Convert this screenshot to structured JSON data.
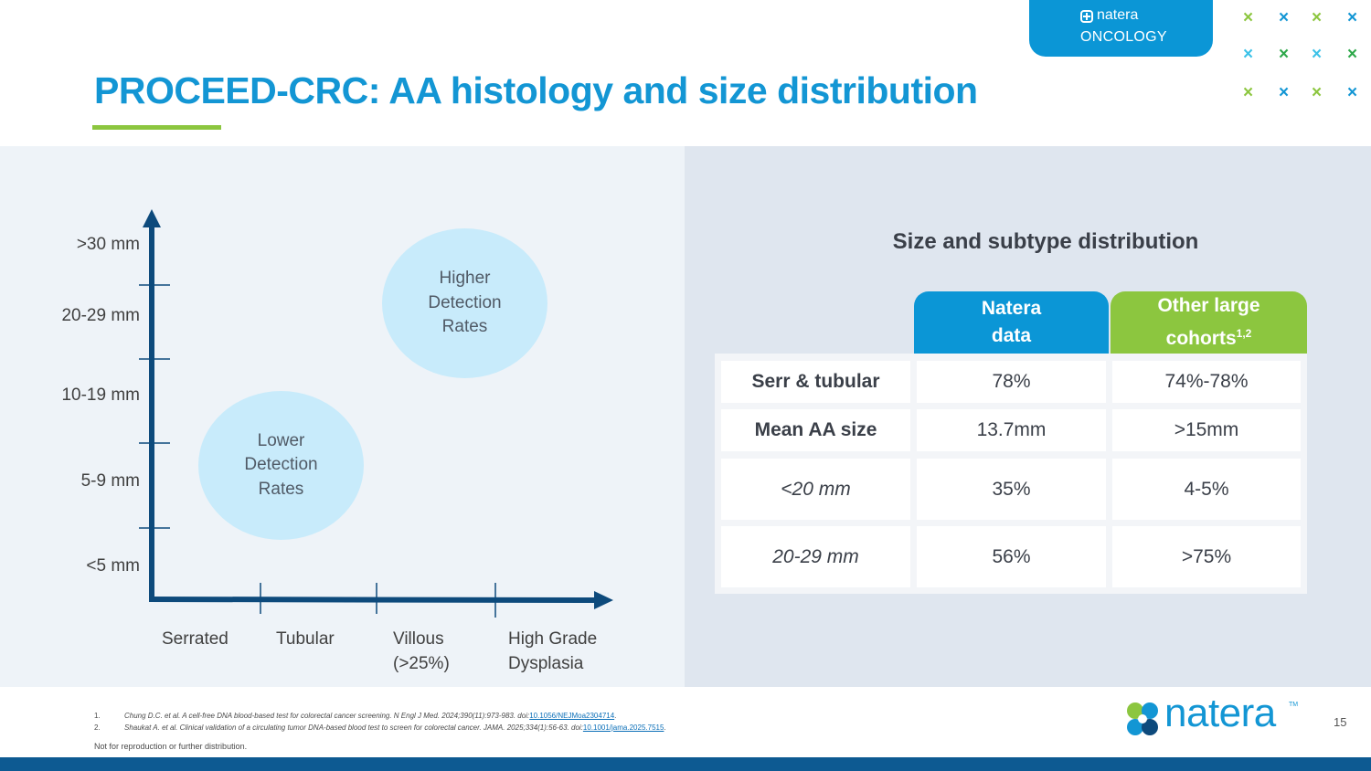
{
  "header": {
    "title": "PROCEED-CRC: AA histology and size distribution",
    "brand_tab": {
      "name": "natera",
      "sub": "ONCOLOGY"
    },
    "accent_colors": {
      "title": "#1396d4",
      "rule": "#8cc63f",
      "x_green": "#8cc63f",
      "x_blue": "#1396d4",
      "x_dark_green": "#2ea84a",
      "x_light_blue": "#3cc2e8"
    }
  },
  "x_marks": [
    {
      "glyph": "×",
      "color": "#8cc63f"
    },
    {
      "glyph": "×",
      "color": "#1396d4"
    },
    {
      "glyph": "×",
      "color": "#8cc63f"
    },
    {
      "glyph": "×",
      "color": "#1396d4"
    },
    {
      "glyph": "×",
      "color": "#3cc2e8"
    },
    {
      "glyph": "×",
      "color": "#2ea84a"
    },
    {
      "glyph": "×",
      "color": "#3cc2e8"
    },
    {
      "glyph": "×",
      "color": "#2ea84a"
    },
    {
      "glyph": "×",
      "color": "#8cc63f"
    },
    {
      "glyph": "×",
      "color": "#1396d4"
    },
    {
      "glyph": "×",
      "color": "#8cc63f"
    },
    {
      "glyph": "×",
      "color": "#1396d4"
    }
  ],
  "diagram": {
    "y_labels": [
      ">30 mm",
      "20-29 mm",
      "10-19 mm",
      "5-9 mm",
      "<5 mm"
    ],
    "x_labels": [
      {
        "line1": "Serrated",
        "line2": ""
      },
      {
        "line1": "Tubular",
        "line2": ""
      },
      {
        "line1": "Villous",
        "line2": "(>25%)"
      },
      {
        "line1": "High Grade",
        "line2": "Dysplasia"
      }
    ],
    "bubbles": {
      "higher": [
        "Higher",
        "Detection",
        "Rates"
      ],
      "lower": [
        "Lower",
        "Detection",
        "Rates"
      ]
    },
    "axis_color": "#0d4a7c",
    "bubble_color": "#c8ebfb"
  },
  "table": {
    "title": "Size and subtype distribution",
    "col_headers": [
      {
        "line1": "Natera",
        "line2": "data",
        "sup": "",
        "color": "#0b96d6"
      },
      {
        "line1": "Other large",
        "line2": "cohorts",
        "sup": "1,2",
        "color": "#8cc63f"
      }
    ],
    "rows": [
      {
        "label": "Serr & tubular",
        "natera": "78%",
        "other": "74%-78%"
      },
      {
        "label": "Mean AA size",
        "natera": "13.7mm",
        "other": ">15mm"
      },
      {
        "label": "<20 mm",
        "natera": "35%",
        "other": "4-5%"
      },
      {
        "label": "20-29 mm",
        "natera": "56%",
        "other": ">75%"
      }
    ]
  },
  "footer": {
    "refs": [
      {
        "num": "1.",
        "text": "Chung D.C. et al. A cell-free DNA blood-based test for colorectal cancer screening. N Engl J Med. 2024;390(11):973-983. doi:",
        "link": "10.1056/NEJMoa2304714",
        "tail": "."
      },
      {
        "num": "2.",
        "text": "Shaukat A. et al. Clinical validation of a circulating tumor DNA-based blood test to screen for colorectal cancer. JAMA. 2025;334(1):56-63. doi:",
        "link": "10.1001/jama.2025.7515",
        "tail": "."
      }
    ],
    "disclaimer": "Not for reproduction or further distribution.",
    "logo_word": "natera",
    "logo_tm": "TM",
    "page_number": "15"
  }
}
